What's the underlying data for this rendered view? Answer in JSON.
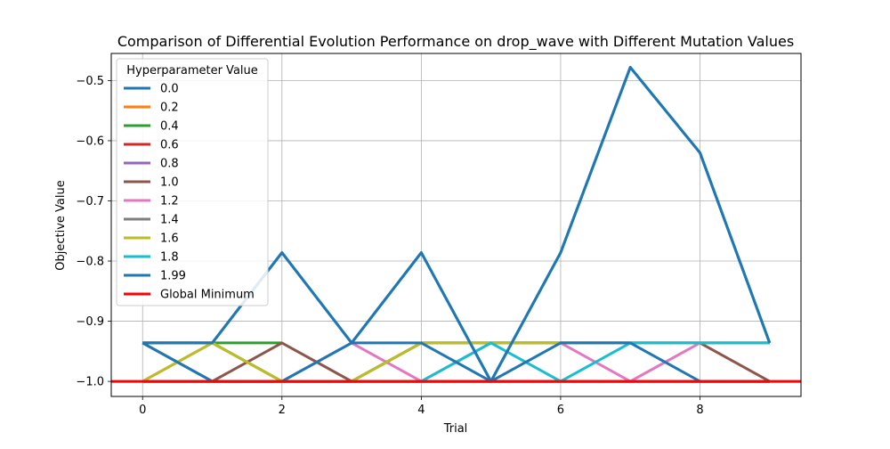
{
  "chart_data": {
    "type": "line",
    "title": "Comparison of Differential Evolution Performance on drop_wave with Different Mutation Values",
    "xlabel": "Trial",
    "ylabel": "Objective Value",
    "xlim": [
      -0.45,
      9.45
    ],
    "ylim": [
      -1.025,
      -0.455
    ],
    "xticks": [
      0,
      2,
      4,
      6,
      8
    ],
    "yticks": [
      -1.0,
      -0.9,
      -0.8,
      -0.7,
      -0.6,
      -0.5
    ],
    "ytick_labels": [
      "−1.0",
      "−0.9",
      "−0.8",
      "−0.7",
      "−0.6",
      "−0.5"
    ],
    "grid": true,
    "legend_title": "Hyperparameter Value",
    "legend_position": "top-left",
    "x": [
      0,
      1,
      2,
      3,
      4,
      5,
      6,
      7,
      8,
      9
    ],
    "series": [
      {
        "name": "0.0",
        "color": "#1f77b4",
        "values": [
          -0.936,
          -0.936,
          -0.786,
          -0.936,
          -0.786,
          -1.0,
          -0.786,
          -0.478,
          -0.62,
          -0.936
        ]
      },
      {
        "name": "0.2",
        "color": "#ff7f0e",
        "values": [
          -1.0,
          -1.0,
          -1.0,
          -1.0,
          -1.0,
          -1.0,
          -1.0,
          -1.0,
          -1.0,
          -1.0
        ]
      },
      {
        "name": "0.4",
        "color": "#2ca02c",
        "values": [
          -0.936,
          -0.936,
          -0.936,
          null,
          null,
          null,
          null,
          null,
          null,
          null
        ]
      },
      {
        "name": "0.6",
        "color": "#d62728",
        "values": [
          -1.0,
          -1.0,
          -1.0,
          -1.0,
          -1.0,
          -1.0,
          -1.0,
          -1.0,
          -1.0,
          -1.0
        ]
      },
      {
        "name": "0.8",
        "color": "#9467bd",
        "values": [
          -1.0,
          -1.0,
          -1.0,
          -1.0,
          -1.0,
          -1.0,
          -1.0,
          -1.0,
          -1.0,
          -1.0
        ]
      },
      {
        "name": "1.0",
        "color": "#8c564b",
        "values": [
          -0.936,
          -1.0,
          -0.936,
          -1.0,
          -0.936,
          -0.936,
          -0.936,
          -0.936,
          -0.936,
          -1.0
        ]
      },
      {
        "name": "1.2",
        "color": "#e377c2",
        "values": [
          -1.0,
          -0.936,
          -1.0,
          -0.936,
          -1.0,
          -0.936,
          -0.936,
          -1.0,
          -0.936,
          -0.936
        ]
      },
      {
        "name": "1.4",
        "color": "#7f7f7f",
        "values": [
          -0.936,
          -0.936,
          -1.0,
          -1.0,
          -0.936,
          -0.936,
          -0.936,
          -0.936,
          -0.936,
          -0.936
        ]
      },
      {
        "name": "1.6",
        "color": "#bcbd22",
        "values": [
          -1.0,
          -0.936,
          -1.0,
          -1.0,
          -0.936,
          -0.936,
          -0.936,
          -0.936,
          -0.936,
          -0.936
        ]
      },
      {
        "name": "1.8",
        "color": "#17becf",
        "values": [
          -1.0,
          -1.0,
          -1.0,
          -1.0,
          -1.0,
          -0.936,
          -1.0,
          -0.936,
          -0.936,
          -0.936
        ]
      },
      {
        "name": "1.99",
        "color": "#1f77b4",
        "values": [
          -0.936,
          -1.0,
          -1.0,
          -0.936,
          -0.936,
          -1.0,
          -0.936,
          -0.936,
          -1.0,
          -1.0
        ]
      }
    ],
    "reference_line": {
      "name": "Global Minimum",
      "color": "#ff0000",
      "value": -1.0
    }
  }
}
